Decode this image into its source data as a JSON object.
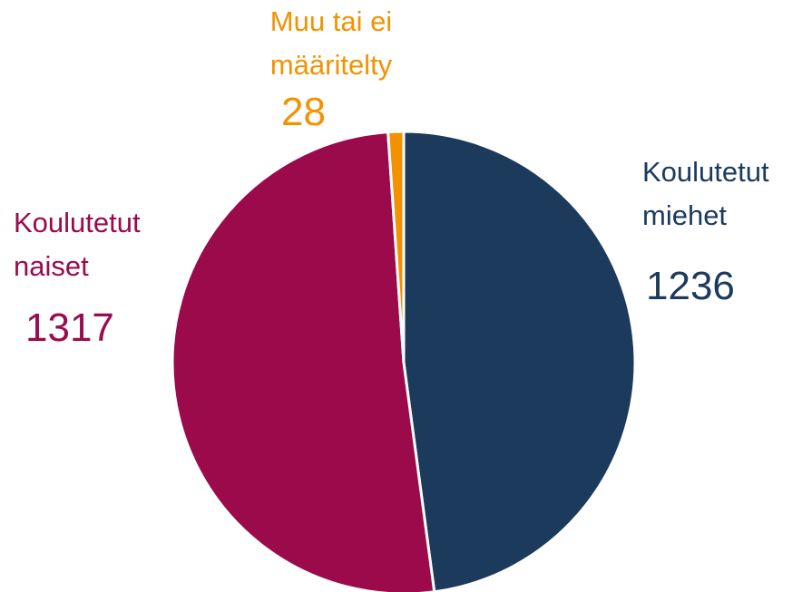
{
  "chart_data": {
    "type": "pie",
    "categories": [
      "Koulutetut miehet",
      "Koulutetut naiset",
      "Muu tai ei määritelty"
    ],
    "values": [
      1236,
      1317,
      28
    ],
    "colors": [
      "#1b3a5c",
      "#9b0a4b",
      "#f39200"
    ]
  }
}
